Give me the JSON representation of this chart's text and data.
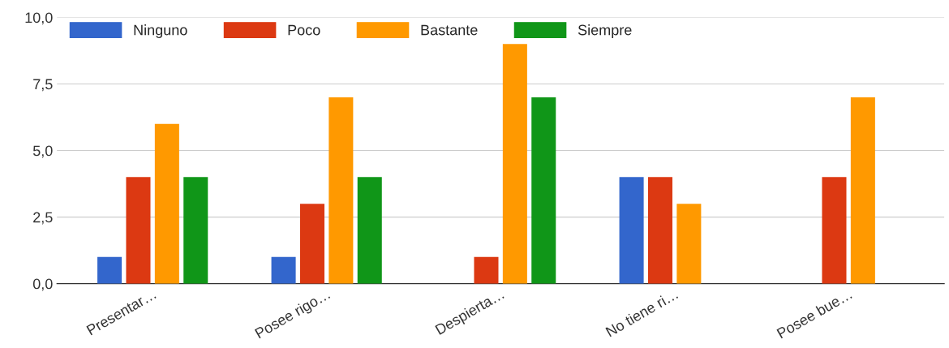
{
  "chart_data": {
    "type": "bar",
    "categories": [
      "Presentar…",
      "Posee rigo…",
      "Despierta…",
      "No tiene ri…",
      "Posee bue…"
    ],
    "series": [
      {
        "name": "Ninguno",
        "color": "#3366cc",
        "values": [
          1,
          1,
          null,
          4,
          null
        ]
      },
      {
        "name": "Poco",
        "color": "#dc3912",
        "values": [
          4,
          3,
          1,
          4,
          4
        ]
      },
      {
        "name": "Bastante",
        "color": "#ff9900",
        "values": [
          6,
          7,
          9,
          3,
          7
        ]
      },
      {
        "name": "Siempre",
        "color": "#109618",
        "values": [
          4,
          4,
          7,
          null,
          null
        ]
      }
    ],
    "ylim": [
      0,
      10
    ],
    "yticks": [
      {
        "value": 0,
        "label": "0,0"
      },
      {
        "value": 2.5,
        "label": "2,5"
      },
      {
        "value": 5,
        "label": "5,0"
      },
      {
        "value": 7.5,
        "label": "7,5"
      },
      {
        "value": 10,
        "label": "10,0"
      }
    ],
    "grid": "y",
    "legend": "top left"
  }
}
